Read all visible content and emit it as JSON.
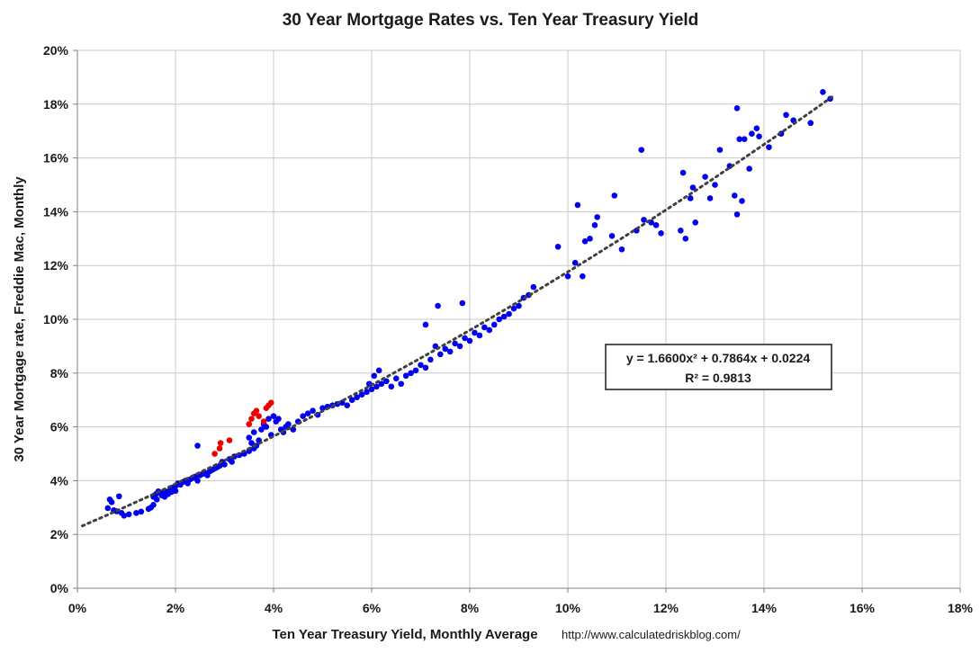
{
  "chart_data": {
    "type": "scatter",
    "title": "30 Year Mortgage Rates vs. Ten Year Treasury Yield",
    "xlabel": "Ten Year Treasury Yield, Monthly Average",
    "ylabel": "30 Year Mortgage rate, Freddie Mac, Monthly",
    "source": "http://www.calculatedriskblog.com/",
    "xlim": [
      0,
      18
    ],
    "ylim": [
      0,
      20
    ],
    "x_ticks": [
      "0%",
      "2%",
      "4%",
      "6%",
      "8%",
      "10%",
      "12%",
      "14%",
      "16%",
      "18%"
    ],
    "y_ticks": [
      "0%",
      "2%",
      "4%",
      "6%",
      "8%",
      "10%",
      "12%",
      "14%",
      "16%",
      "18%",
      "20%"
    ],
    "grid": true,
    "trendline": {
      "type": "polynomial",
      "coefficients": [
        1.66,
        0.7864,
        0.0224
      ],
      "x_range": [
        0.1,
        15.4
      ],
      "color": "#404040",
      "style": "dotted"
    },
    "equation_lines": [
      "y = 1.6600x² + 0.7864x + 0.0224",
      "R² = 0.9813"
    ],
    "series": [
      {
        "color": "#0000ee",
        "points": [
          [
            0.62,
            2.98
          ],
          [
            0.66,
            3.3
          ],
          [
            0.7,
            3.2
          ],
          [
            0.74,
            2.9
          ],
          [
            0.8,
            2.86
          ],
          [
            0.85,
            3.42
          ],
          [
            0.9,
            2.8
          ],
          [
            0.95,
            2.7
          ],
          [
            1.05,
            2.75
          ],
          [
            1.2,
            2.8
          ],
          [
            1.3,
            2.85
          ],
          [
            1.45,
            2.95
          ],
          [
            1.5,
            3.0
          ],
          [
            1.55,
            3.1
          ],
          [
            1.55,
            3.4
          ],
          [
            1.6,
            3.5
          ],
          [
            1.62,
            3.3
          ],
          [
            1.65,
            3.6
          ],
          [
            1.7,
            3.55
          ],
          [
            1.72,
            3.45
          ],
          [
            1.75,
            3.55
          ],
          [
            1.78,
            3.4
          ],
          [
            1.8,
            3.6
          ],
          [
            1.85,
            3.5
          ],
          [
            1.9,
            3.7
          ],
          [
            1.92,
            3.58
          ],
          [
            1.95,
            3.75
          ],
          [
            2.0,
            3.8
          ],
          [
            2.0,
            3.62
          ],
          [
            2.05,
            3.9
          ],
          [
            2.1,
            3.85
          ],
          [
            2.15,
            3.95
          ],
          [
            2.2,
            4.0
          ],
          [
            2.25,
            3.9
          ],
          [
            2.3,
            4.05
          ],
          [
            2.35,
            4.1
          ],
          [
            2.4,
            4.15
          ],
          [
            2.45,
            4.0
          ],
          [
            2.45,
            5.3
          ],
          [
            2.5,
            4.2
          ],
          [
            2.55,
            4.25
          ],
          [
            2.6,
            4.3
          ],
          [
            2.65,
            4.2
          ],
          [
            2.7,
            4.35
          ],
          [
            2.75,
            4.4
          ],
          [
            2.8,
            4.45
          ],
          [
            2.85,
            4.5
          ],
          [
            2.9,
            4.55
          ],
          [
            2.95,
            4.7
          ],
          [
            3.0,
            4.6
          ],
          [
            3.1,
            4.8
          ],
          [
            3.15,
            4.7
          ],
          [
            3.2,
            4.9
          ],
          [
            3.3,
            4.95
          ],
          [
            3.4,
            5.0
          ],
          [
            3.5,
            5.1
          ],
          [
            3.5,
            5.6
          ],
          [
            3.55,
            5.4
          ],
          [
            3.6,
            5.2
          ],
          [
            3.6,
            5.8
          ],
          [
            3.65,
            5.3
          ],
          [
            3.7,
            5.5
          ],
          [
            3.75,
            5.9
          ],
          [
            3.8,
            6.1
          ],
          [
            3.85,
            6.0
          ],
          [
            3.9,
            6.3
          ],
          [
            3.95,
            5.7
          ],
          [
            4.0,
            6.4
          ],
          [
            4.05,
            6.2
          ],
          [
            4.1,
            6.3
          ],
          [
            4.15,
            5.9
          ],
          [
            4.2,
            5.8
          ],
          [
            4.25,
            6.0
          ],
          [
            4.3,
            6.1
          ],
          [
            4.4,
            5.9
          ],
          [
            4.5,
            6.2
          ],
          [
            4.6,
            6.4
          ],
          [
            4.7,
            6.5
          ],
          [
            4.8,
            6.6
          ],
          [
            4.9,
            6.45
          ],
          [
            5.0,
            6.7
          ],
          [
            5.1,
            6.75
          ],
          [
            5.2,
            6.8
          ],
          [
            5.3,
            6.85
          ],
          [
            5.4,
            6.9
          ],
          [
            5.5,
            6.8
          ],
          [
            5.6,
            7.0
          ],
          [
            5.7,
            7.1
          ],
          [
            5.8,
            7.2
          ],
          [
            5.9,
            7.3
          ],
          [
            5.95,
            7.6
          ],
          [
            6.0,
            7.4
          ],
          [
            6.05,
            7.9
          ],
          [
            6.1,
            7.5
          ],
          [
            6.15,
            8.1
          ],
          [
            6.2,
            7.6
          ],
          [
            6.3,
            7.7
          ],
          [
            6.4,
            7.5
          ],
          [
            6.5,
            7.8
          ],
          [
            6.6,
            7.6
          ],
          [
            6.7,
            7.9
          ],
          [
            6.8,
            8.0
          ],
          [
            6.9,
            8.1
          ],
          [
            7.0,
            8.3
          ],
          [
            7.1,
            8.2
          ],
          [
            7.1,
            9.8
          ],
          [
            7.2,
            8.5
          ],
          [
            7.3,
            9.0
          ],
          [
            7.35,
            10.5
          ],
          [
            7.4,
            8.7
          ],
          [
            7.5,
            8.9
          ],
          [
            7.6,
            8.8
          ],
          [
            7.7,
            9.1
          ],
          [
            7.8,
            9.0
          ],
          [
            7.85,
            10.6
          ],
          [
            7.9,
            9.3
          ],
          [
            8.0,
            9.2
          ],
          [
            8.1,
            9.5
          ],
          [
            8.2,
            9.4
          ],
          [
            8.3,
            9.7
          ],
          [
            8.4,
            9.6
          ],
          [
            8.5,
            9.8
          ],
          [
            8.6,
            10.0
          ],
          [
            8.7,
            10.1
          ],
          [
            8.8,
            10.2
          ],
          [
            8.9,
            10.4
          ],
          [
            9.0,
            10.5
          ],
          [
            9.1,
            10.8
          ],
          [
            9.2,
            10.9
          ],
          [
            9.3,
            11.2
          ],
          [
            9.8,
            12.7
          ],
          [
            10.0,
            11.6
          ],
          [
            10.15,
            12.1
          ],
          [
            10.2,
            14.25
          ],
          [
            10.3,
            11.6
          ],
          [
            10.35,
            12.9
          ],
          [
            10.45,
            13.0
          ],
          [
            10.55,
            13.5
          ],
          [
            10.6,
            13.8
          ],
          [
            10.9,
            13.1
          ],
          [
            10.95,
            14.6
          ],
          [
            11.1,
            12.6
          ],
          [
            11.4,
            13.3
          ],
          [
            11.5,
            16.3
          ],
          [
            11.55,
            13.7
          ],
          [
            11.7,
            13.6
          ],
          [
            11.8,
            13.5
          ],
          [
            11.9,
            13.2
          ],
          [
            12.3,
            13.3
          ],
          [
            12.35,
            15.45
          ],
          [
            12.4,
            13.0
          ],
          [
            12.5,
            14.5
          ],
          [
            12.55,
            14.9
          ],
          [
            12.6,
            13.6
          ],
          [
            12.8,
            15.3
          ],
          [
            12.9,
            14.5
          ],
          [
            13.0,
            15.0
          ],
          [
            13.1,
            16.3
          ],
          [
            13.3,
            15.7
          ],
          [
            13.4,
            14.6
          ],
          [
            13.45,
            17.85
          ],
          [
            13.45,
            13.9
          ],
          [
            13.5,
            16.7
          ],
          [
            13.55,
            14.4
          ],
          [
            13.6,
            16.7
          ],
          [
            13.7,
            15.6
          ],
          [
            13.75,
            16.9
          ],
          [
            13.85,
            17.1
          ],
          [
            13.9,
            16.8
          ],
          [
            14.1,
            16.4
          ],
          [
            14.35,
            16.9
          ],
          [
            14.45,
            17.6
          ],
          [
            14.6,
            17.4
          ],
          [
            14.95,
            17.3
          ],
          [
            15.2,
            18.45
          ],
          [
            15.35,
            18.2
          ]
        ]
      },
      {
        "color": "#ee0000",
        "points": [
          [
            2.8,
            5.0
          ],
          [
            2.9,
            5.2
          ],
          [
            2.92,
            5.4
          ],
          [
            3.1,
            5.5
          ],
          [
            3.5,
            6.1
          ],
          [
            3.55,
            6.3
          ],
          [
            3.6,
            6.5
          ],
          [
            3.65,
            6.6
          ],
          [
            3.7,
            6.4
          ],
          [
            3.8,
            6.2
          ],
          [
            3.85,
            6.7
          ],
          [
            3.9,
            6.8
          ],
          [
            3.95,
            6.9
          ]
        ]
      }
    ]
  }
}
